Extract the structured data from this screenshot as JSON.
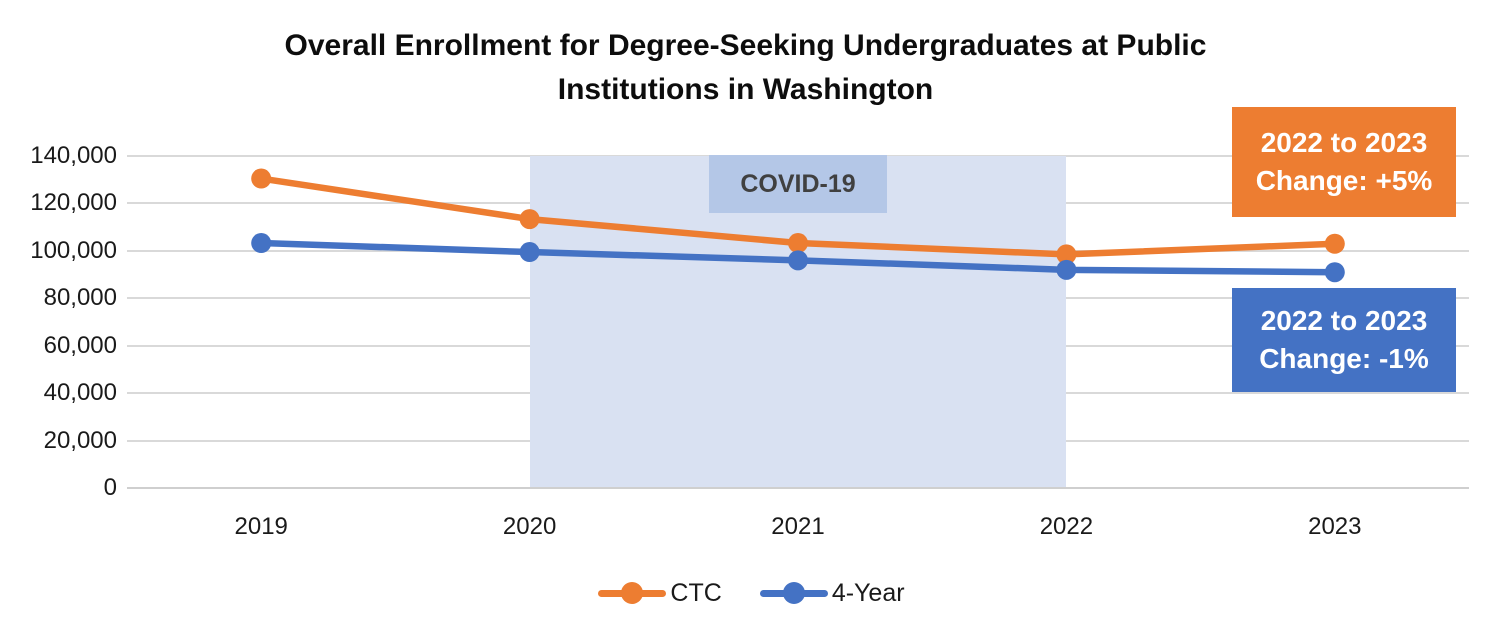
{
  "header": {
    "line1": "Overall Enrollment for Degree-Seeking Undergraduates at Public",
    "line2": "Institutions in Washington"
  },
  "chart_data": {
    "type": "line",
    "title": "Overall Enrollment for Degree-Seeking Undergraduates at Public Institutions in Washington",
    "categories": [
      "2019",
      "2020",
      "2021",
      "2022",
      "2023"
    ],
    "series": [
      {
        "name": "CTC",
        "color": "#ED7D31",
        "values": [
          130500,
          113400,
          103300,
          98500,
          103000
        ]
      },
      {
        "name": "4-Year",
        "color": "#4472C4",
        "values": [
          103300,
          99500,
          96000,
          92000,
          91000
        ]
      }
    ],
    "ylim": [
      0,
      140000
    ],
    "ytick_values": [
      140000,
      120000,
      100000,
      80000,
      60000,
      40000,
      20000,
      0
    ],
    "ytick_labels": [
      "140,000",
      "120,000",
      "100,000",
      "80,000",
      "60,000",
      "40,000",
      "20,000",
      "0"
    ],
    "grid": true,
    "legend_position": "bottom",
    "annotations": {
      "covid_band": {
        "label": "COVID-19",
        "from": "2020",
        "to": "2022",
        "band_color": "#D9E1F2",
        "label_box_color": "#B4C7E7",
        "label_text_color": "#404040"
      },
      "ctc_change": {
        "line1": "2022 to 2023",
        "line2": "Change: +5%",
        "color": "#ED7D31"
      },
      "four_year_change": {
        "line1": "2022 to 2023",
        "line2": "Change: -1%",
        "color": "#4472C4"
      }
    },
    "colors": {
      "gridline": "#D9D9D9",
      "text": "#1A1A1A"
    }
  }
}
